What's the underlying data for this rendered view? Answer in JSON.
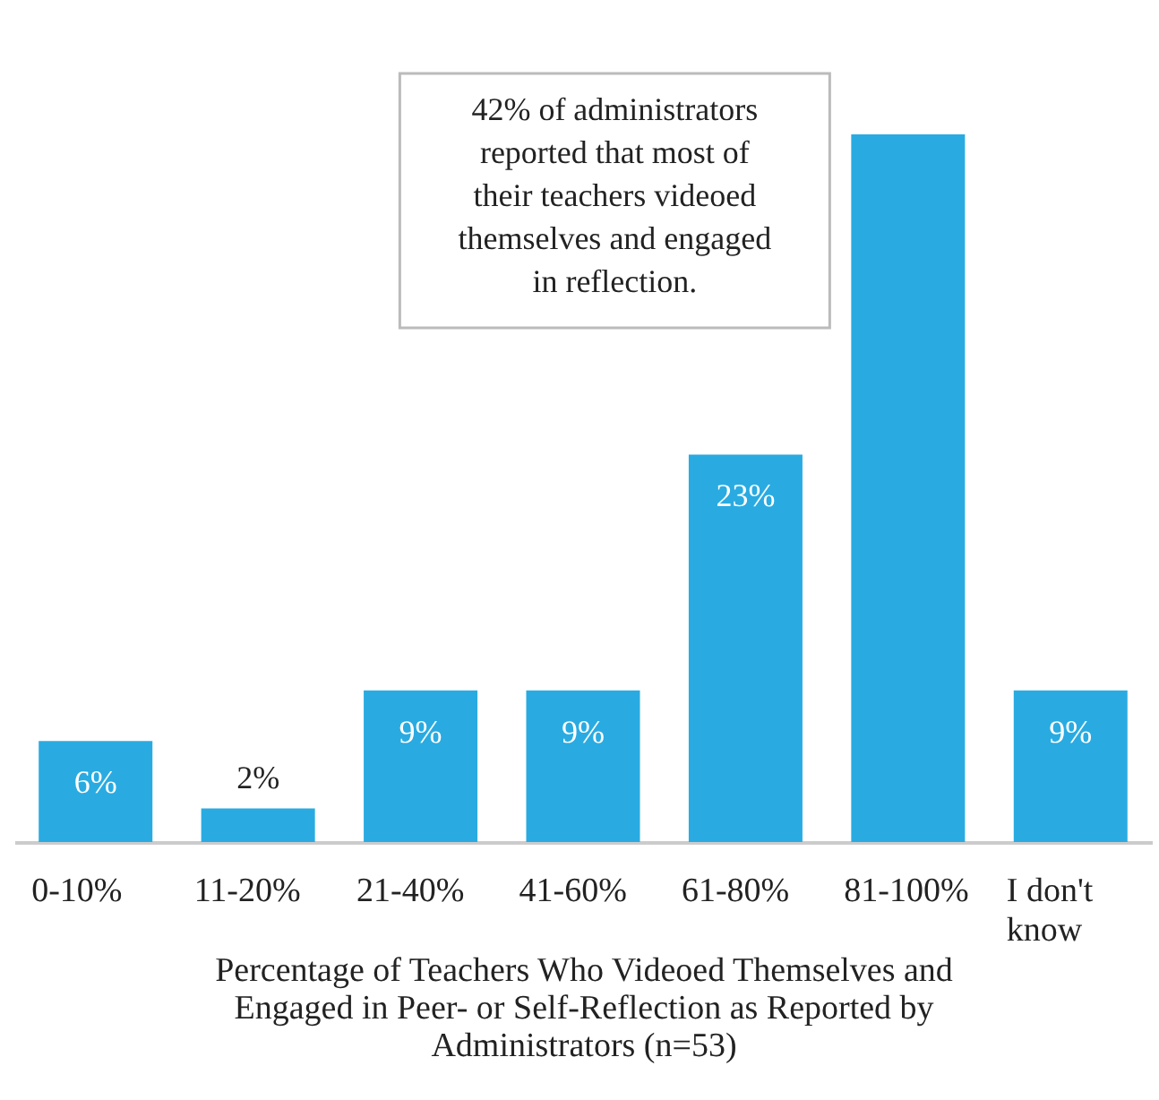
{
  "chart_data": {
    "type": "bar",
    "xlabel": "Percentage of Teachers Who Videoed Themselves and Engaged in Peer- or Self-Reflection as Reported by Administrators (n=53)",
    "categories": [
      "0-10%",
      "11-20%",
      "21-40%",
      "41-60%",
      "61-80%",
      "81-100%",
      "I don't know"
    ],
    "values": [
      6,
      2,
      9,
      9,
      23,
      42,
      9
    ],
    "value_labels": [
      "6%",
      "2%",
      "9%",
      "9%",
      "23%",
      null,
      "9%"
    ],
    "color": "#29abe2",
    "annotations": [
      "42% of administrators reported that most of their teachers videoed themselves and engaged in reflection."
    ]
  }
}
